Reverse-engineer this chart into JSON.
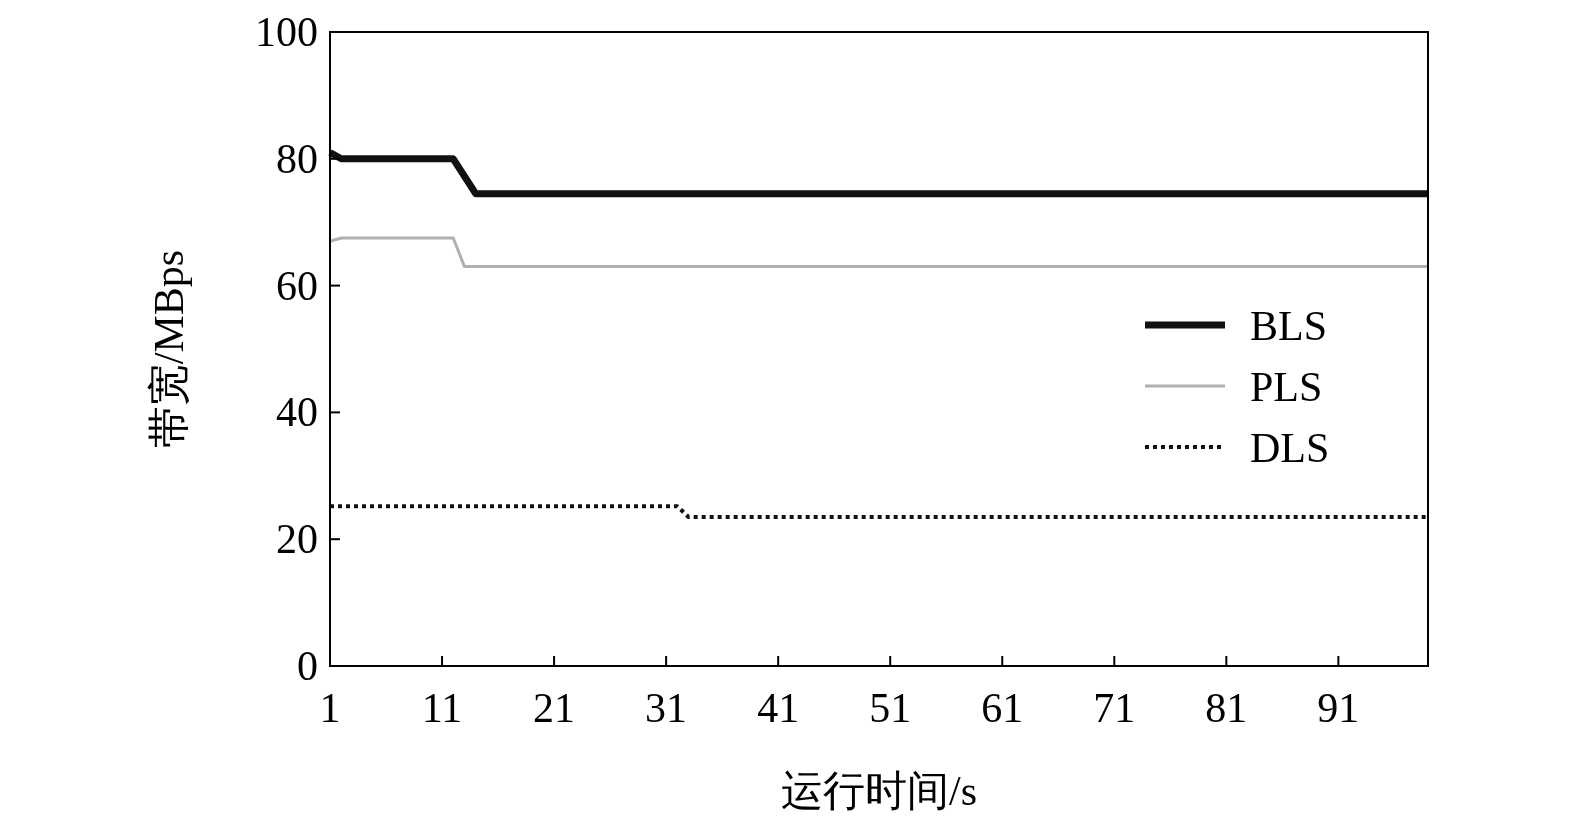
{
  "chart_data": {
    "type": "line",
    "xlabel": "运行时间/s",
    "ylabel": "带宽/MBps",
    "xlim": [
      1,
      99
    ],
    "xticks": [
      1,
      11,
      21,
      31,
      41,
      51,
      61,
      71,
      81,
      91
    ],
    "ylim": [
      0,
      100
    ],
    "yticks": [
      0,
      20,
      40,
      60,
      80,
      100
    ],
    "legend": "right",
    "grid": false,
    "series": [
      {
        "name": "BLS",
        "color": "#111111",
        "line_style": "solid",
        "x": [
          1,
          2,
          3,
          12,
          14,
          99
        ],
        "values": [
          81,
          80,
          80,
          80,
          74.5,
          74.5
        ]
      },
      {
        "name": "PLS",
        "color": "#b0b0b0",
        "line_style": "solid",
        "x": [
          1,
          2,
          12,
          13,
          99
        ],
        "values": [
          67,
          67.5,
          67.5,
          63,
          63
        ]
      },
      {
        "name": "DLS",
        "color": "#111111",
        "line_style": "dotted",
        "x": [
          1,
          32,
          33,
          99
        ],
        "values": [
          25.2,
          25.2,
          23.5,
          23.5
        ]
      }
    ]
  }
}
